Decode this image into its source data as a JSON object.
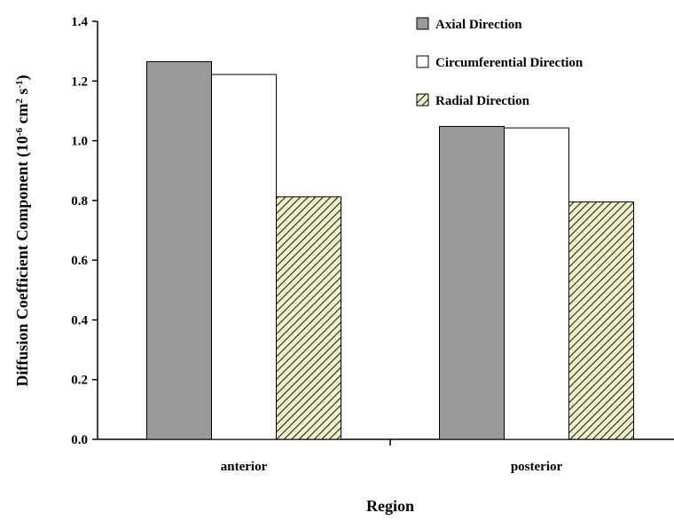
{
  "chart_data": {
    "type": "bar",
    "categories": [
      "anterior",
      "posterior"
    ],
    "series": [
      {
        "name": "Axial Direction",
        "values": [
          1.265,
          1.048
        ],
        "fill": "#999999",
        "pattern": "solid"
      },
      {
        "name": "Circumferential Direction",
        "values": [
          1.222,
          1.043
        ],
        "fill": "#ffffff",
        "pattern": "solid"
      },
      {
        "name": "Radial Direction",
        "values": [
          0.812,
          0.795
        ],
        "fill": "#f1f0c8",
        "pattern": "hatch"
      }
    ],
    "xlabel": "Region",
    "ylabel_main": "Diffusion Coefficient Component (10",
    "ylabel_exp1": "-6",
    "ylabel_mid": " cm",
    "ylabel_exp2": "2",
    "ylabel_mid2": " s",
    "ylabel_exp3": "-1",
    "ylabel_end": ")",
    "ylim": [
      0,
      1.4
    ],
    "yticks": [
      "0.0",
      "0.2",
      "0.4",
      "0.6",
      "0.8",
      "1.0",
      "1.2",
      "1.4"
    ],
    "grid": false,
    "legend_position": "top-right"
  }
}
